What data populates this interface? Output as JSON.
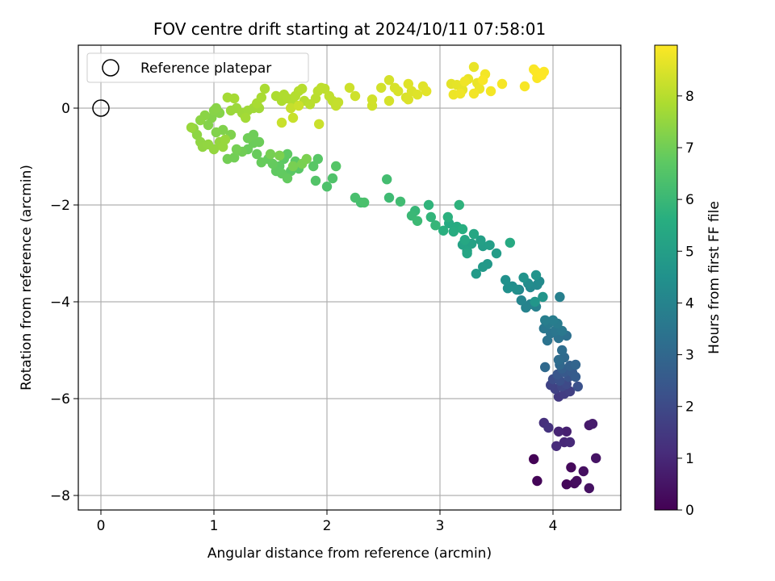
{
  "chart_data": {
    "type": "scatter",
    "title": "FOV centre drift starting at 2024/10/11 07:58:01",
    "xlabel": "Angular distance from reference (arcmin)",
    "ylabel": "Rotation from reference (arcmin)",
    "xlim": [
      -0.2,
      4.6
    ],
    "ylim": [
      -8.3,
      1.3
    ],
    "xticks": [
      0,
      1,
      2,
      3,
      4
    ],
    "yticks": [
      0,
      -2,
      -4,
      -6,
      -8
    ],
    "grid": true,
    "legend": {
      "position": "top-left",
      "entries": [
        "Reference platepar"
      ]
    },
    "reference_point": {
      "name": "Reference platepar",
      "x": 0,
      "y": 0
    },
    "colorbar": {
      "label": "Hours from first FF file",
      "min": 0,
      "max": 8.98,
      "ticks": [
        0,
        1,
        2,
        3,
        4,
        5,
        6,
        7,
        8
      ],
      "colormap": "viridis"
    },
    "series": [
      {
        "color_value_key": "hours",
        "points": [
          [
            3.83,
            -7.25,
            0.05
          ],
          [
            3.86,
            -7.7,
            0.1
          ],
          [
            4.12,
            -7.77,
            0.15
          ],
          [
            4.16,
            -7.42,
            0.2
          ],
          [
            4.19,
            -7.75,
            0.25
          ],
          [
            4.21,
            -7.7,
            0.3
          ],
          [
            4.27,
            -7.5,
            0.35
          ],
          [
            4.32,
            -7.85,
            0.4
          ],
          [
            4.38,
            -7.23,
            0.45
          ],
          [
            4.32,
            -6.55,
            0.6
          ],
          [
            4.35,
            -6.52,
            0.7
          ],
          [
            4.12,
            -6.68,
            0.8
          ],
          [
            4.05,
            -6.68,
            0.9
          ],
          [
            4.1,
            -6.9,
            1.0
          ],
          [
            4.15,
            -6.9,
            1.05
          ],
          [
            4.03,
            -6.98,
            1.1
          ],
          [
            3.92,
            -6.5,
            1.2
          ],
          [
            3.96,
            -6.6,
            1.3
          ],
          [
            4.05,
            -5.96,
            1.5
          ],
          [
            4.1,
            -5.9,
            1.6
          ],
          [
            4.15,
            -5.85,
            1.7
          ],
          [
            4.02,
            -5.8,
            1.75
          ],
          [
            3.98,
            -5.72,
            1.8
          ],
          [
            4.08,
            -5.75,
            1.9
          ],
          [
            4.12,
            -5.7,
            2.0
          ],
          [
            4.0,
            -5.6,
            2.1
          ],
          [
            4.06,
            -5.63,
            2.2
          ],
          [
            4.22,
            -5.75,
            2.25
          ],
          [
            4.14,
            -5.55,
            2.3
          ],
          [
            4.04,
            -5.5,
            2.4
          ],
          [
            4.1,
            -5.45,
            2.5
          ],
          [
            4.17,
            -5.45,
            2.55
          ],
          [
            4.2,
            -5.55,
            2.6
          ],
          [
            4.08,
            -5.38,
            2.7
          ],
          [
            4.15,
            -5.32,
            2.8
          ],
          [
            4.2,
            -5.3,
            2.9
          ],
          [
            4.06,
            -5.3,
            3.0
          ],
          [
            3.93,
            -5.35,
            3.05
          ],
          [
            4.1,
            -5.15,
            3.1
          ],
          [
            4.05,
            -5.2,
            3.15
          ],
          [
            4.08,
            -5.0,
            3.2
          ],
          [
            4.12,
            -4.7,
            3.3
          ],
          [
            4.05,
            -4.75,
            3.35
          ],
          [
            3.95,
            -4.8,
            3.4
          ],
          [
            3.98,
            -4.65,
            3.45
          ],
          [
            4.02,
            -4.6,
            3.5
          ],
          [
            3.92,
            -4.55,
            3.55
          ],
          [
            4.08,
            -4.6,
            3.6
          ],
          [
            3.96,
            -4.45,
            3.65
          ],
          [
            4.04,
            -4.45,
            3.7
          ],
          [
            4.0,
            -4.38,
            3.75
          ],
          [
            3.93,
            -4.38,
            3.8
          ],
          [
            4.06,
            -3.9,
            3.85
          ],
          [
            3.85,
            -4.1,
            3.9
          ],
          [
            3.8,
            -4.05,
            3.95
          ],
          [
            3.76,
            -4.12,
            4.0
          ],
          [
            3.72,
            -3.97,
            4.05
          ],
          [
            3.7,
            -3.75,
            4.1
          ],
          [
            3.8,
            -3.7,
            4.15
          ],
          [
            3.86,
            -3.65,
            4.2
          ],
          [
            3.88,
            -3.58,
            4.25
          ],
          [
            3.78,
            -3.62,
            4.3
          ],
          [
            3.64,
            -3.68,
            4.35
          ],
          [
            3.68,
            -3.75,
            4.4
          ],
          [
            3.6,
            -3.72,
            4.45
          ],
          [
            3.58,
            -3.55,
            4.5
          ],
          [
            3.74,
            -3.5,
            4.55
          ],
          [
            3.85,
            -3.45,
            4.6
          ],
          [
            3.91,
            -3.9,
            4.65
          ],
          [
            3.84,
            -4.0,
            4.7
          ],
          [
            3.42,
            -3.22,
            4.75
          ],
          [
            3.38,
            -3.28,
            4.8
          ],
          [
            3.32,
            -3.42,
            4.85
          ],
          [
            3.5,
            -3.0,
            4.9
          ],
          [
            3.38,
            -2.85,
            4.95
          ],
          [
            3.44,
            -2.83,
            5.0
          ],
          [
            3.36,
            -2.73,
            5.05
          ],
          [
            3.28,
            -2.8,
            5.1
          ],
          [
            3.2,
            -2.82,
            5.15
          ],
          [
            3.24,
            -2.95,
            5.2
          ],
          [
            3.24,
            -3.0,
            5.25
          ],
          [
            3.3,
            -2.6,
            5.3
          ],
          [
            3.22,
            -2.72,
            5.35
          ],
          [
            3.62,
            -2.78,
            5.4
          ],
          [
            3.08,
            -2.38,
            5.45
          ],
          [
            3.15,
            -2.45,
            5.5
          ],
          [
            3.12,
            -2.55,
            5.55
          ],
          [
            3.2,
            -2.5,
            5.6
          ],
          [
            3.03,
            -2.53,
            5.65
          ],
          [
            3.07,
            -2.25,
            5.7
          ],
          [
            3.17,
            -2.0,
            5.75
          ],
          [
            2.9,
            -2.0,
            5.8
          ],
          [
            2.92,
            -2.25,
            5.85
          ],
          [
            2.96,
            -2.42,
            5.9
          ],
          [
            2.78,
            -2.12,
            5.95
          ],
          [
            2.75,
            -2.22,
            6.0
          ],
          [
            2.8,
            -2.33,
            6.05
          ],
          [
            2.55,
            -1.85,
            6.1
          ],
          [
            2.65,
            -1.93,
            6.15
          ],
          [
            2.53,
            -1.47,
            6.2
          ],
          [
            2.3,
            -1.95,
            6.25
          ],
          [
            2.25,
            -1.85,
            6.3
          ],
          [
            2.33,
            -1.95,
            6.35
          ],
          [
            2.0,
            -1.62,
            6.4
          ],
          [
            2.05,
            -1.45,
            6.45
          ],
          [
            1.9,
            -1.5,
            6.5
          ],
          [
            2.08,
            -1.2,
            6.55
          ],
          [
            1.92,
            -1.05,
            6.6
          ],
          [
            1.88,
            -1.2,
            6.62
          ],
          [
            1.75,
            -1.25,
            6.64
          ],
          [
            1.68,
            -1.3,
            6.66
          ],
          [
            1.72,
            -1.1,
            6.68
          ],
          [
            1.62,
            -1.05,
            6.7
          ],
          [
            1.65,
            -0.95,
            6.72
          ],
          [
            1.58,
            -1.2,
            6.74
          ],
          [
            1.55,
            -1.3,
            6.76
          ],
          [
            1.6,
            -1.35,
            6.78
          ],
          [
            1.65,
            -1.45,
            6.8
          ],
          [
            1.52,
            -1.15,
            6.82
          ],
          [
            1.48,
            -1.05,
            6.84
          ],
          [
            1.42,
            -1.12,
            6.86
          ],
          [
            1.38,
            -0.95,
            6.88
          ],
          [
            1.3,
            -0.85,
            6.9
          ],
          [
            1.35,
            -0.72,
            6.92
          ],
          [
            1.4,
            -0.7,
            6.94
          ],
          [
            1.35,
            -0.55,
            6.96
          ],
          [
            1.3,
            -0.62,
            6.98
          ],
          [
            1.25,
            -0.9,
            7.0
          ],
          [
            1.18,
            -1.02,
            7.02
          ],
          [
            1.12,
            -1.05,
            7.04
          ],
          [
            1.2,
            -0.85,
            7.06
          ],
          [
            1.5,
            -0.95,
            7.08
          ],
          [
            1.7,
            -1.2,
            7.1
          ],
          [
            1.78,
            -1.15,
            7.12
          ],
          [
            1.82,
            -1.05,
            7.14
          ],
          [
            1.58,
            -0.98,
            7.16
          ],
          [
            1.15,
            -0.55,
            7.2
          ],
          [
            1.08,
            -0.45,
            7.22
          ],
          [
            1.02,
            -0.5,
            7.24
          ],
          [
            0.95,
            -0.35,
            7.26
          ],
          [
            0.98,
            -0.2,
            7.28
          ],
          [
            1.05,
            -0.1,
            7.3
          ],
          [
            1.0,
            -0.05,
            7.32
          ],
          [
            1.02,
            0.0,
            7.34
          ],
          [
            0.92,
            -0.15,
            7.36
          ],
          [
            0.88,
            -0.25,
            7.38
          ],
          [
            0.82,
            -0.42,
            7.4
          ],
          [
            0.85,
            -0.55,
            7.42
          ],
          [
            0.88,
            -0.7,
            7.44
          ],
          [
            0.9,
            -0.8,
            7.46
          ],
          [
            0.95,
            -0.75,
            7.48
          ],
          [
            1.0,
            -0.85,
            7.5
          ],
          [
            1.05,
            -0.7,
            7.52
          ],
          [
            1.08,
            -0.8,
            7.54
          ],
          [
            1.1,
            -0.65,
            7.56
          ],
          [
            0.8,
            -0.4,
            7.58
          ],
          [
            1.15,
            -0.05,
            7.6
          ],
          [
            1.2,
            0.0,
            7.62
          ],
          [
            1.25,
            -0.1,
            7.64
          ],
          [
            1.3,
            -0.05,
            7.66
          ],
          [
            1.35,
            0.0,
            7.68
          ],
          [
            1.4,
            0.0,
            7.7
          ],
          [
            1.28,
            -0.2,
            7.72
          ],
          [
            1.12,
            0.22,
            7.74
          ],
          [
            1.18,
            0.2,
            7.76
          ],
          [
            1.38,
            0.1,
            7.78
          ],
          [
            1.42,
            0.22,
            7.8
          ],
          [
            1.45,
            0.4,
            7.82
          ],
          [
            1.55,
            0.25,
            7.84
          ],
          [
            1.6,
            0.15,
            7.86
          ],
          [
            1.62,
            0.28,
            7.88
          ],
          [
            1.65,
            0.2,
            7.9
          ],
          [
            1.7,
            0.1,
            7.92
          ],
          [
            1.72,
            0.25,
            7.94
          ],
          [
            1.75,
            0.35,
            7.96
          ],
          [
            1.78,
            0.4,
            7.98
          ],
          [
            1.8,
            0.15,
            8.0
          ],
          [
            1.85,
            0.08,
            8.02
          ],
          [
            1.9,
            0.2,
            8.04
          ],
          [
            1.92,
            0.35,
            8.06
          ],
          [
            1.95,
            0.42,
            8.08
          ],
          [
            1.98,
            0.4,
            8.1
          ],
          [
            2.02,
            0.25,
            8.12
          ],
          [
            2.05,
            0.15,
            8.14
          ],
          [
            2.08,
            0.05,
            8.16
          ],
          [
            2.1,
            0.12,
            8.18
          ],
          [
            1.68,
            0.0,
            8.2
          ],
          [
            1.7,
            -0.2,
            8.22
          ],
          [
            1.6,
            -0.3,
            8.24
          ],
          [
            1.93,
            -0.33,
            8.26
          ],
          [
            1.75,
            0.05,
            8.28
          ],
          [
            2.2,
            0.42,
            8.3
          ],
          [
            2.25,
            0.25,
            8.32
          ],
          [
            2.4,
            0.05,
            8.34
          ],
          [
            2.4,
            0.18,
            8.36
          ],
          [
            2.48,
            0.42,
            8.38
          ],
          [
            2.55,
            0.58,
            8.4
          ],
          [
            2.55,
            0.15,
            8.42
          ],
          [
            2.6,
            0.42,
            8.44
          ],
          [
            2.63,
            0.35,
            8.46
          ],
          [
            2.7,
            0.22,
            8.48
          ],
          [
            2.72,
            0.18,
            8.5
          ],
          [
            2.75,
            0.35,
            8.52
          ],
          [
            2.8,
            0.28,
            8.54
          ],
          [
            2.72,
            0.5,
            8.56
          ],
          [
            2.85,
            0.45,
            8.58
          ],
          [
            2.88,
            0.35,
            8.6
          ],
          [
            3.1,
            0.5,
            8.62
          ],
          [
            3.15,
            0.48,
            8.64
          ],
          [
            3.2,
            0.38,
            8.66
          ],
          [
            3.25,
            0.6,
            8.68
          ],
          [
            3.3,
            0.85,
            8.7
          ],
          [
            3.33,
            0.52,
            8.72
          ],
          [
            3.35,
            0.4,
            8.74
          ],
          [
            3.12,
            0.28,
            8.76
          ],
          [
            3.18,
            0.3,
            8.78
          ],
          [
            3.22,
            0.55,
            8.8
          ],
          [
            3.3,
            0.3,
            8.82
          ],
          [
            3.4,
            0.7,
            8.84
          ],
          [
            3.45,
            0.35,
            8.86
          ],
          [
            3.55,
            0.5,
            8.88
          ],
          [
            3.75,
            0.45,
            8.9
          ],
          [
            3.38,
            0.58,
            8.91
          ],
          [
            3.83,
            0.8,
            8.92
          ],
          [
            3.86,
            0.62,
            8.94
          ],
          [
            3.88,
            0.7,
            8.95
          ],
          [
            3.92,
            0.75,
            8.96
          ],
          [
            3.85,
            0.75,
            8.97
          ],
          [
            3.9,
            0.68,
            8.98
          ]
        ]
      }
    ]
  }
}
